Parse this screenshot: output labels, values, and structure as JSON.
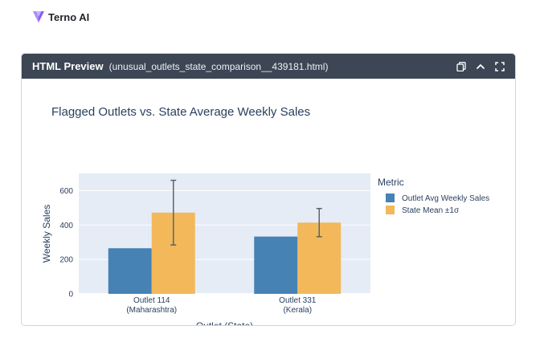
{
  "brand": {
    "name": "Terno AI",
    "logo_icon": "terno-logo-icon",
    "logo_color": "#8b5cf6"
  },
  "panel": {
    "title": "HTML Preview",
    "filename": "(unusual_outlets_state_comparison__439181.html)",
    "actions": [
      {
        "name": "copy-icon"
      },
      {
        "name": "chevron-up-icon"
      },
      {
        "name": "expand-icon"
      }
    ]
  },
  "chart_data": {
    "type": "bar",
    "title": "Flagged Outlets vs. State Average Weekly Sales",
    "xlabel": "Outlet (State)",
    "ylabel": "Weekly Sales",
    "ylim": [
      0,
      700
    ],
    "yticks": [
      0,
      200,
      400,
      600
    ],
    "grid": true,
    "legend_title": "Metric",
    "legend_position": "top-right",
    "categories": [
      [
        "Outlet 114",
        "(Maharashtra)"
      ],
      [
        "Outlet 331",
        "(Kerala)"
      ]
    ],
    "series": [
      {
        "name": "Outlet Avg Weekly Sales",
        "color": "#4682b4",
        "values": [
          265,
          333
        ]
      },
      {
        "name": "State Mean ±1σ",
        "color": "#f2b85a",
        "values": [
          472,
          414
        ],
        "error": [
          188,
          82
        ]
      }
    ],
    "plot_bg": "#e5ecf6"
  }
}
